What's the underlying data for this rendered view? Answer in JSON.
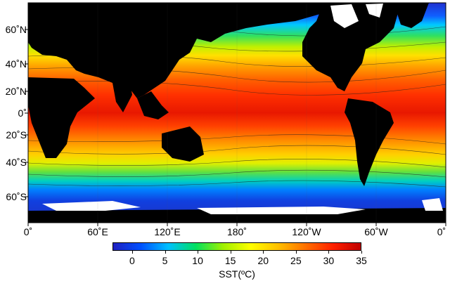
{
  "map": {
    "latitude_labels": [
      "60˚N",
      "40˚N",
      "20˚N",
      "0˚",
      "20˚S",
      "40˚S",
      "60˚S"
    ],
    "longitude_labels": [
      "0˚",
      "60˚E",
      "120˚E",
      "180˚",
      "120˚W",
      "60˚W",
      "0˚"
    ],
    "colors": {
      "land": "#000000",
      "ice": "#ffffff",
      "contour": "#1a1a1a"
    }
  },
  "colorbar": {
    "ticks": [
      "0",
      "5",
      "10",
      "15",
      "20",
      "25",
      "30",
      "35"
    ],
    "label": "SST(ºC)",
    "range": [
      -3,
      35
    ],
    "stops": [
      "#2020c0",
      "#0050ff",
      "#00c0ff",
      "#00e060",
      "#a0f000",
      "#ffff00",
      "#ffc000",
      "#ff7000",
      "#ff2000",
      "#c00000"
    ]
  }
}
